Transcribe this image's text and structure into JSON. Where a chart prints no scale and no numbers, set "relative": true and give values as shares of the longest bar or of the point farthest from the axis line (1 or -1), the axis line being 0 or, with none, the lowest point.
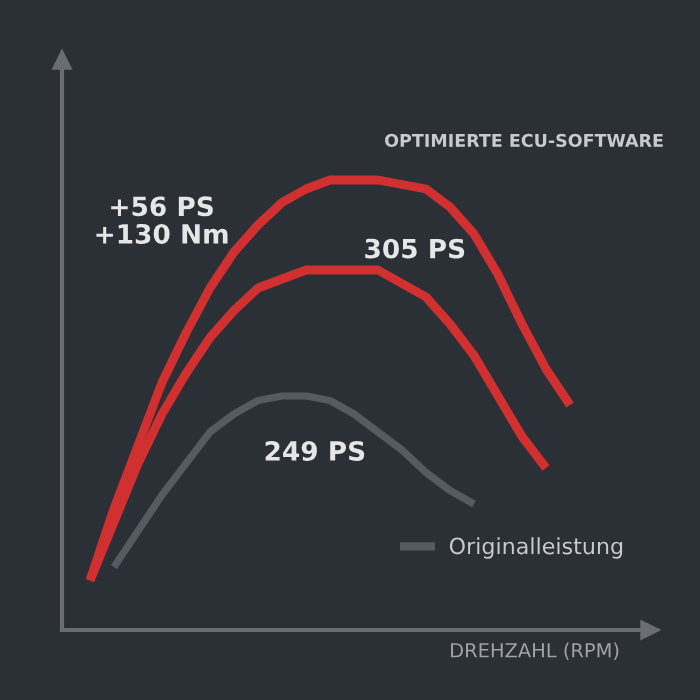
{
  "chart_data": {
    "type": "line",
    "relative": true,
    "subtitle": "OPTIMIERTE ECU-SOFTWARE",
    "xlabel": "DREHZAHL (RPM)",
    "categories": [
      null,
      null,
      null,
      null,
      null,
      null,
      null,
      null,
      null,
      null,
      null,
      null,
      null,
      null,
      null,
      null,
      null,
      null,
      null,
      null,
      null
    ],
    "series": [
      {
        "color": "#d0302f",
        "values": [
          0.11,
          0.27,
          0.41,
          0.55,
          0.66,
          0.76,
          0.84,
          0.9,
          0.95,
          0.98,
          1.0,
          1.0,
          1.0,
          0.99,
          0.98,
          0.94,
          0.88,
          0.79,
          0.68,
          0.58,
          0.5
        ]
      },
      {
        "color": "#d0302f",
        "values": [
          0.11,
          0.24,
          0.37,
          0.48,
          0.57,
          0.65,
          0.71,
          0.76,
          0.78,
          0.8,
          0.8,
          0.8,
          0.8,
          0.77,
          0.74,
          0.68,
          0.61,
          0.52,
          0.43,
          0.36,
          null
        ]
      },
      {
        "name": "Originalleistung",
        "color": "#565b62",
        "values": [
          null,
          0.14,
          0.22,
          0.3,
          0.37,
          0.44,
          0.48,
          0.51,
          0.52,
          0.52,
          0.51,
          0.48,
          0.44,
          0.4,
          0.35,
          0.31,
          0.28,
          null,
          null,
          null,
          null
        ]
      }
    ],
    "annotations": [
      "+56 PS\n+130 Nm",
      "305 PS",
      "249 PS"
    ],
    "legend": "bottom right",
    "line_style": "solid",
    "marker": "none"
  }
}
